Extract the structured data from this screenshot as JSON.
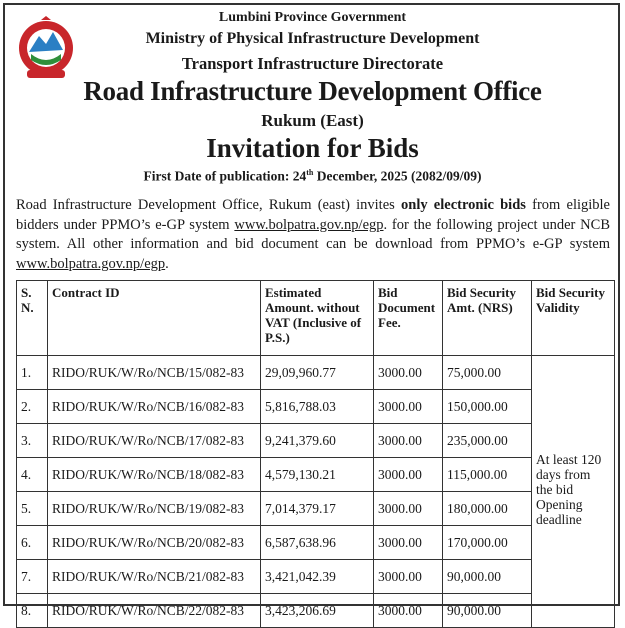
{
  "header": {
    "line1": "Lumbini Province Government",
    "line2": "Ministry of Physical Infrastructure Development",
    "line3": "Transport Infrastructure Directorate",
    "office": "Road Infrastructure Development Office",
    "location": "Rukum (East)",
    "title": "Invitation for Bids",
    "pub_prefix": "First Date of publication: 24",
    "pub_sup": "th",
    "pub_suffix": " December, 2025 (2082/09/09)"
  },
  "body": {
    "p1": "Road Infrastructure Development Office, Rukum (east) invites ",
    "p1_bold": "only electronic bids",
    "p2": " from eligible bidders under PPMO’s e-GP system ",
    "link1": "www.bolpatra.gov.np/egp",
    "p3": ". for the following project under NCB system. All other information and bid document can be download from PPMO’s e-GP system ",
    "link2": "www.bolpatra.gov.np/egp",
    "p4": "."
  },
  "table": {
    "headers": [
      "S. N.",
      "Contract ID",
      "Estimated Amount. without VAT (Inclusive of P.S.)",
      "Bid Document Fee.",
      "Bid Security Amt. (NRS)",
      "Bid Security Validity"
    ],
    "validity": "At least 120 days from the bid Opening deadline",
    "rows": [
      [
        "1.",
        "RIDO/RUK/W/Ro/NCB/15/082-83",
        "29,09,960.77",
        "3000.00",
        "75,000.00"
      ],
      [
        "2.",
        "RIDO/RUK/W/Ro/NCB/16/082-83",
        "5,816,788.03",
        "3000.00",
        "150,000.00"
      ],
      [
        "3.",
        "RIDO/RUK/W/Ro/NCB/17/082-83",
        "9,241,379.60",
        "3000.00",
        "235,000.00"
      ],
      [
        "4.",
        "RIDO/RUK/W/Ro/NCB/18/082-83",
        "4,579,130.21",
        "3000.00",
        "115,000.00"
      ],
      [
        "5.",
        "RIDO/RUK/W/Ro/NCB/19/082-83",
        "7,014,379.17",
        "3000.00",
        "180,000.00"
      ],
      [
        "6.",
        "RIDO/RUK/W/Ro/NCB/20/082-83",
        "6,587,638.96",
        "3000.00",
        "170,000.00"
      ],
      [
        "7.",
        "RIDO/RUK/W/Ro/NCB/21/082-83",
        "3,421,042.39",
        "3000.00",
        "90,000.00"
      ],
      [
        "8.",
        "RIDO/RUK/W/Ro/NCB/22/082-83",
        "3,423,206.69",
        "3000.00",
        "90,000.00"
      ]
    ]
  }
}
